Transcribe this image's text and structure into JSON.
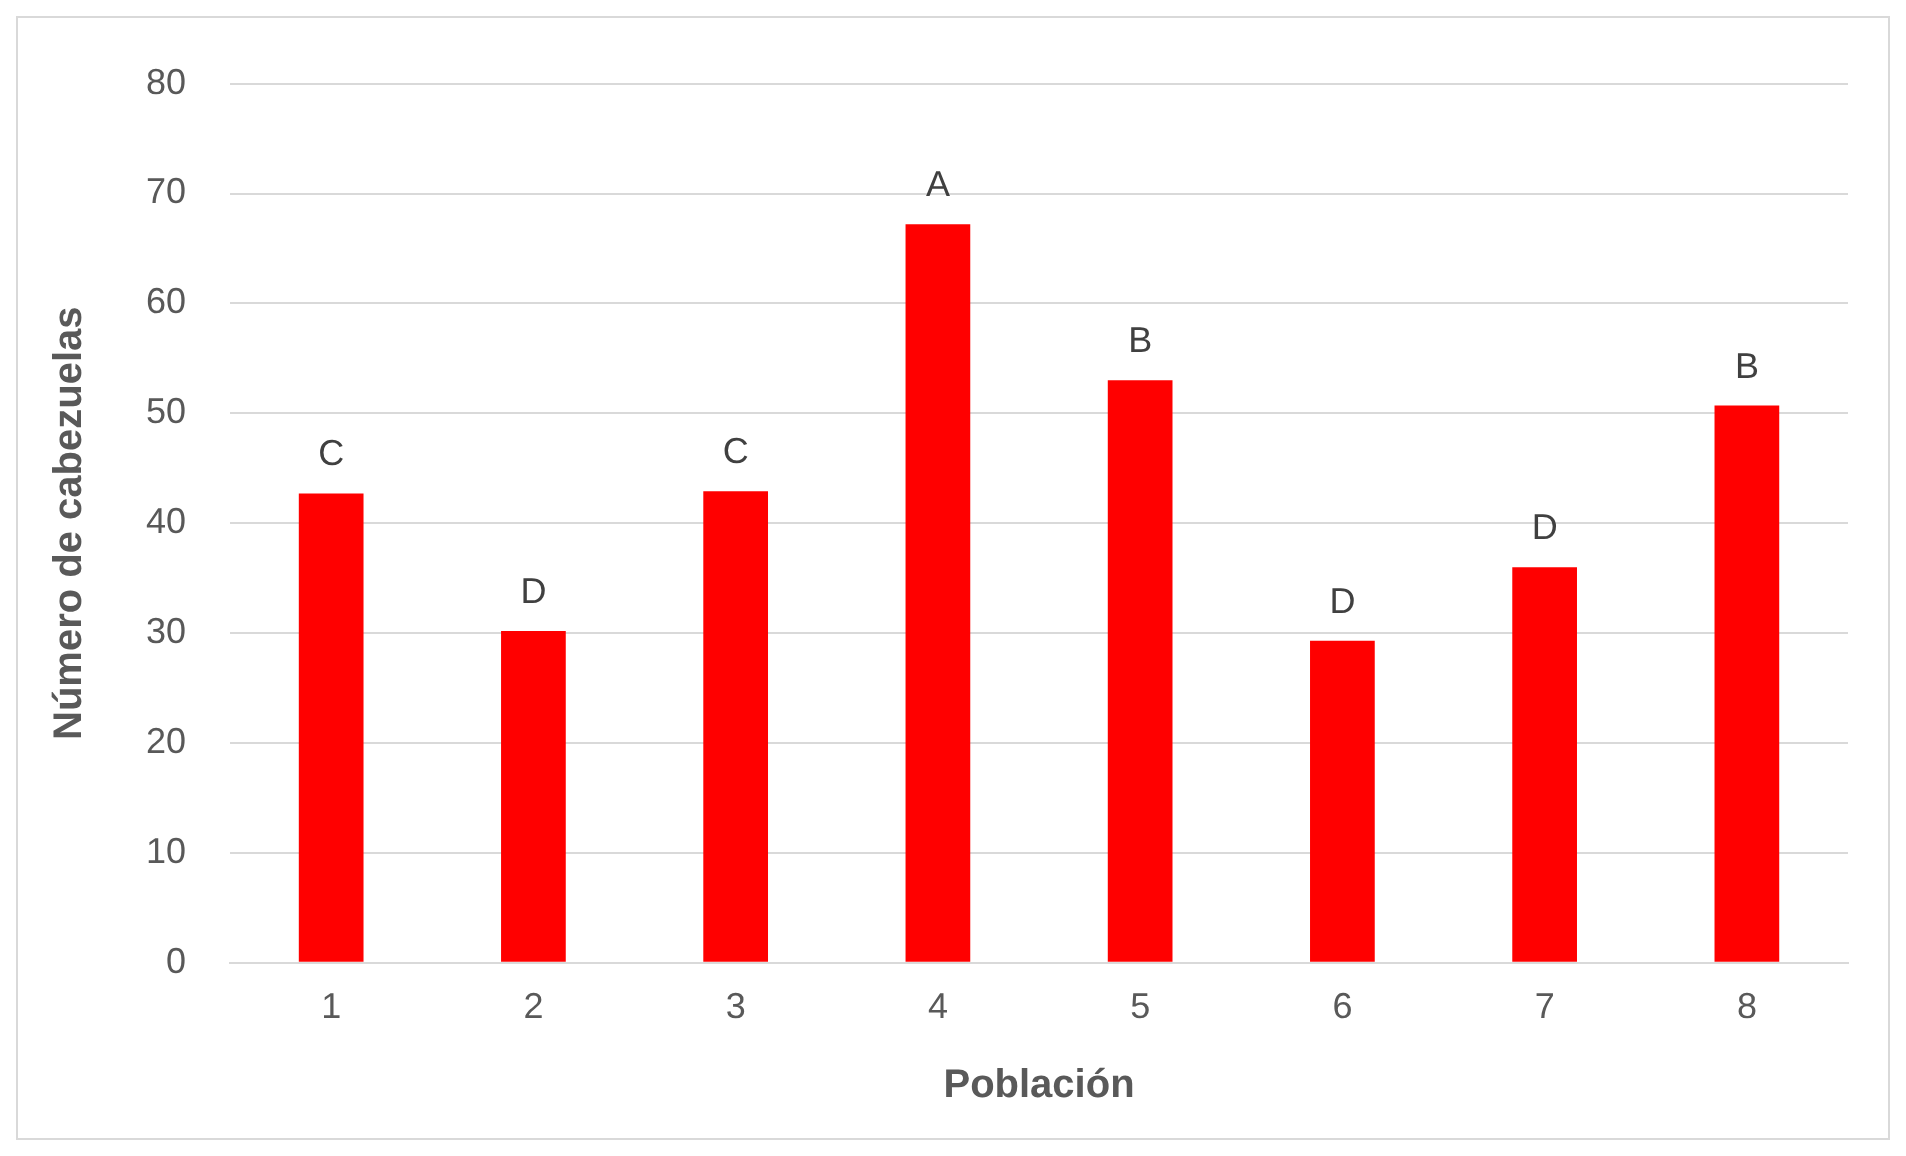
{
  "chart_data": {
    "type": "bar",
    "xlabel": "Población",
    "ylabel": "Número de cabezuelas",
    "categories": [
      "1",
      "2",
      "3",
      "4",
      "5",
      "6",
      "7",
      "8"
    ],
    "values": [
      42.7,
      30.2,
      42.9,
      67.2,
      53.0,
      29.3,
      36.0,
      50.7
    ],
    "color": "#ff0000",
    "ylim": [
      0,
      80
    ],
    "yticks": [
      0,
      10,
      20,
      30,
      40,
      50,
      60,
      70,
      80
    ],
    "grid": "y",
    "legend": false,
    "annotations": [
      {
        "text": "C",
        "x": "1",
        "y": 42.7
      },
      {
        "text": "D",
        "x": "2",
        "y": 30.2
      },
      {
        "text": "C",
        "x": "3",
        "y": 42.9
      },
      {
        "text": "A",
        "x": "4",
        "y": 67.2
      },
      {
        "text": "B",
        "x": "5",
        "y": 53.0
      },
      {
        "text": "D",
        "x": "6",
        "y": 29.3
      },
      {
        "text": "D",
        "x": "7",
        "y": 36.0
      },
      {
        "text": "B",
        "x": "8",
        "y": 50.7
      }
    ]
  }
}
